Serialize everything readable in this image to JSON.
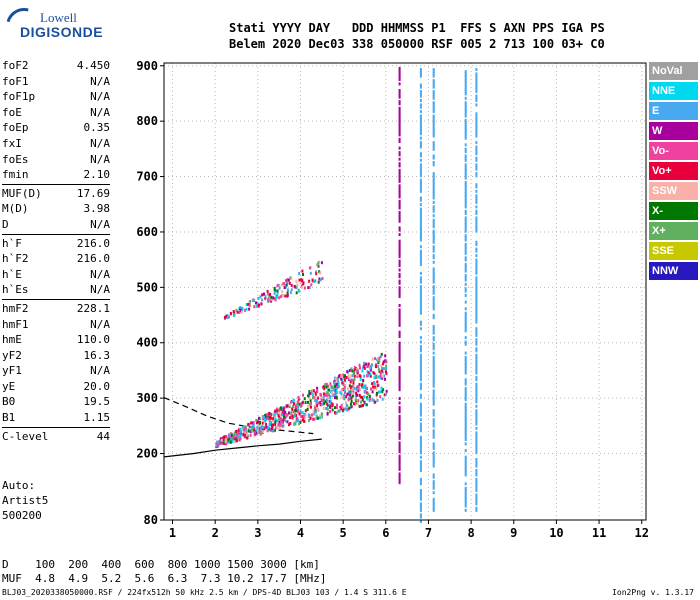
{
  "logo": {
    "line1": "Lowell",
    "line2": "DIGISONDE"
  },
  "header": {
    "line1": "Stati YYYY DAY   DDD HHMMSS P1  FFS S AXN PPS IGA PS",
    "line2": "Belem 2020 Dec03 338 050000 RSF 005 2 713 100 03+ C0"
  },
  "params": {
    "group1": [
      {
        "name": "foF2",
        "value": "4.450"
      },
      {
        "name": "foF1",
        "value": "N/A"
      },
      {
        "name": "foF1p",
        "value": "N/A"
      },
      {
        "name": "foE",
        "value": "N/A"
      },
      {
        "name": "foEp",
        "value": "0.35"
      },
      {
        "name": "fxI",
        "value": "N/A"
      },
      {
        "name": "foEs",
        "value": "N/A"
      },
      {
        "name": "fmin",
        "value": "2.10"
      }
    ],
    "group2": [
      {
        "name": "MUF(D)",
        "value": "17.69"
      },
      {
        "name": "M(D)",
        "value": "3.98"
      },
      {
        "name": "D",
        "value": "N/A"
      }
    ],
    "group3": [
      {
        "name": "h`F",
        "value": "216.0"
      },
      {
        "name": "h`F2",
        "value": "216.0"
      },
      {
        "name": "h`E",
        "value": "N/A"
      },
      {
        "name": "h`Es",
        "value": "N/A"
      }
    ],
    "group4": [
      {
        "name": "hmF2",
        "value": "228.1"
      },
      {
        "name": "hmF1",
        "value": "N/A"
      },
      {
        "name": "hmE",
        "value": "110.0"
      },
      {
        "name": "yF2",
        "value": "16.3"
      },
      {
        "name": "yF1",
        "value": "N/A"
      },
      {
        "name": "yE",
        "value": "20.0"
      },
      {
        "name": "B0",
        "value": "19.5"
      },
      {
        "name": "B1",
        "value": "1.15"
      }
    ],
    "group5": [
      {
        "name": "C-level",
        "value": "44"
      }
    ]
  },
  "auto": {
    "line1": "Auto:",
    "line2": "Artist5",
    "line3": "500200"
  },
  "legend": [
    {
      "label": "NoVal",
      "color": "#a0a0a0"
    },
    {
      "label": "NNE",
      "color": "#00d8f0"
    },
    {
      "label": "E",
      "color": "#48a8f0"
    },
    {
      "label": "W",
      "color": "#a8009c"
    },
    {
      "label": "Vo-",
      "color": "#f040a0"
    },
    {
      "label": "Vo+",
      "color": "#e8003c"
    },
    {
      "label": "SSW",
      "color": "#f8b0a8"
    },
    {
      "label": "X-",
      "color": "#007800"
    },
    {
      "label": "X+",
      "color": "#60b060"
    },
    {
      "label": "SSE",
      "color": "#c8c800"
    },
    {
      "label": "NNW",
      "color": "#2818c0"
    }
  ],
  "muf_table": {
    "row1": "D    100  200  400  600  800 1000 1500 3000 [km]",
    "row2": "MUF  4.8  4.9  5.2  5.6  6.3  7.3 10.2 17.7 [MHz]"
  },
  "footer": "BLJ03_2020338050000.RSF / 224fx512h 50 kHz 2.5 km / DPS-4D BLJ03 103 / 1.4 S 311.6 E",
  "version": "Ion2Png v. 1.3.17",
  "chart_data": {
    "type": "scatter",
    "xlim": [
      0.8,
      12.1
    ],
    "ylim": [
      80,
      905
    ],
    "x_ticks": [
      1,
      2,
      3,
      4,
      5,
      6,
      7,
      8,
      9,
      10,
      11,
      12
    ],
    "y_ticks": [
      80,
      200,
      300,
      400,
      500,
      600,
      700,
      800,
      900
    ],
    "profile_dashed": {
      "x": [
        0.8,
        1.3,
        1.8,
        2.3,
        2.8,
        3.3,
        3.8,
        4.3
      ],
      "y": [
        301,
        285,
        268,
        255,
        248,
        244,
        240,
        236
      ]
    },
    "profile_solid": {
      "x": [
        0.8,
        1.5,
        2.0,
        2.5,
        3.0,
        3.5,
        4.0,
        4.5
      ],
      "y": [
        194,
        200,
        206,
        210,
        214,
        217,
        222,
        226
      ]
    },
    "traces": [
      {
        "name": "F-trace",
        "x_range": [
          2.0,
          6.0
        ],
        "y_start": 215,
        "y_end": 300,
        "spread": [
          10,
          90
        ]
      },
      {
        "name": "F-multi",
        "x_range": [
          2.2,
          4.5
        ],
        "y_start": 445,
        "y_end": 510,
        "spread": [
          5,
          45
        ]
      }
    ],
    "vertical_lines": [
      {
        "x": 6.3,
        "y_range": [
          150,
          900
        ],
        "color": "#a8009c"
      },
      {
        "x": 6.8,
        "y_range": [
          80,
          900
        ],
        "color": "#48a8f0"
      },
      {
        "x": 7.1,
        "y_range": [
          100,
          900
        ],
        "color": "#48a8f0"
      },
      {
        "x": 8.1,
        "y_range": [
          100,
          900
        ],
        "color": "#48a8f0"
      },
      {
        "x": 7.85,
        "y_range": [
          100,
          900
        ],
        "color": "#48a8f0"
      }
    ]
  }
}
